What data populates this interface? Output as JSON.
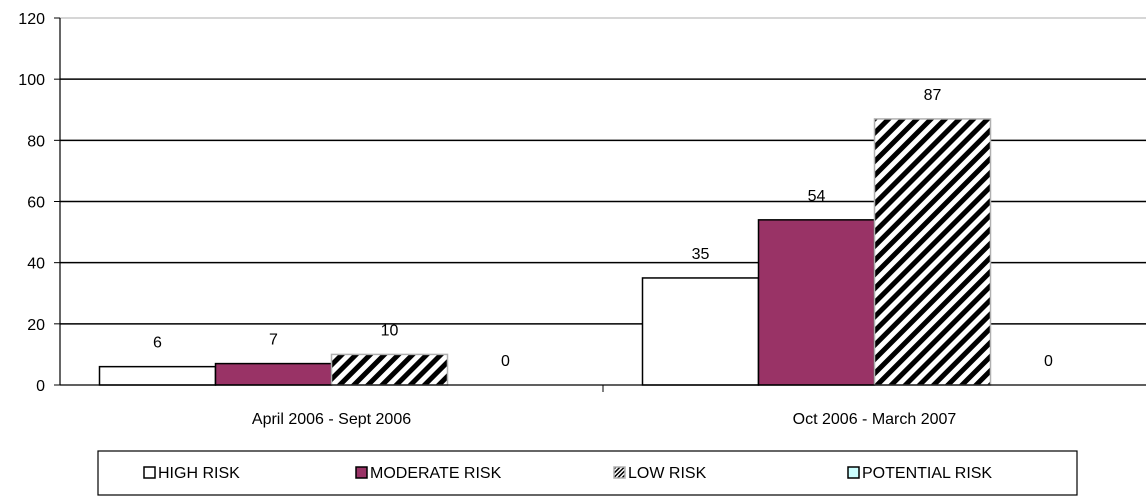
{
  "chart_data": {
    "type": "bar",
    "categories": [
      "April 2006 - Sept 2006",
      "Oct 2006 - March 2007"
    ],
    "series": [
      {
        "name": "HIGH RISK",
        "values": [
          6,
          35
        ],
        "fill": "#ffffff",
        "pattern": "none"
      },
      {
        "name": "MODERATE RISK",
        "values": [
          7,
          54
        ],
        "fill": "#993366",
        "pattern": "none"
      },
      {
        "name": "LOW RISK",
        "values": [
          10,
          87
        ],
        "fill": "#ffffff",
        "pattern": "diagonal-hatch"
      },
      {
        "name": "POTENTIAL RISK",
        "values": [
          0,
          0
        ],
        "fill": "#ccffff",
        "pattern": "none"
      }
    ],
    "title": "",
    "xlabel": "",
    "ylabel": "",
    "ylim": [
      0,
      120
    ],
    "yticks": [
      "0",
      "20",
      "40",
      "60",
      "80",
      "100",
      "120"
    ],
    "grid": true,
    "legend": "bottom",
    "data_labels": true
  }
}
